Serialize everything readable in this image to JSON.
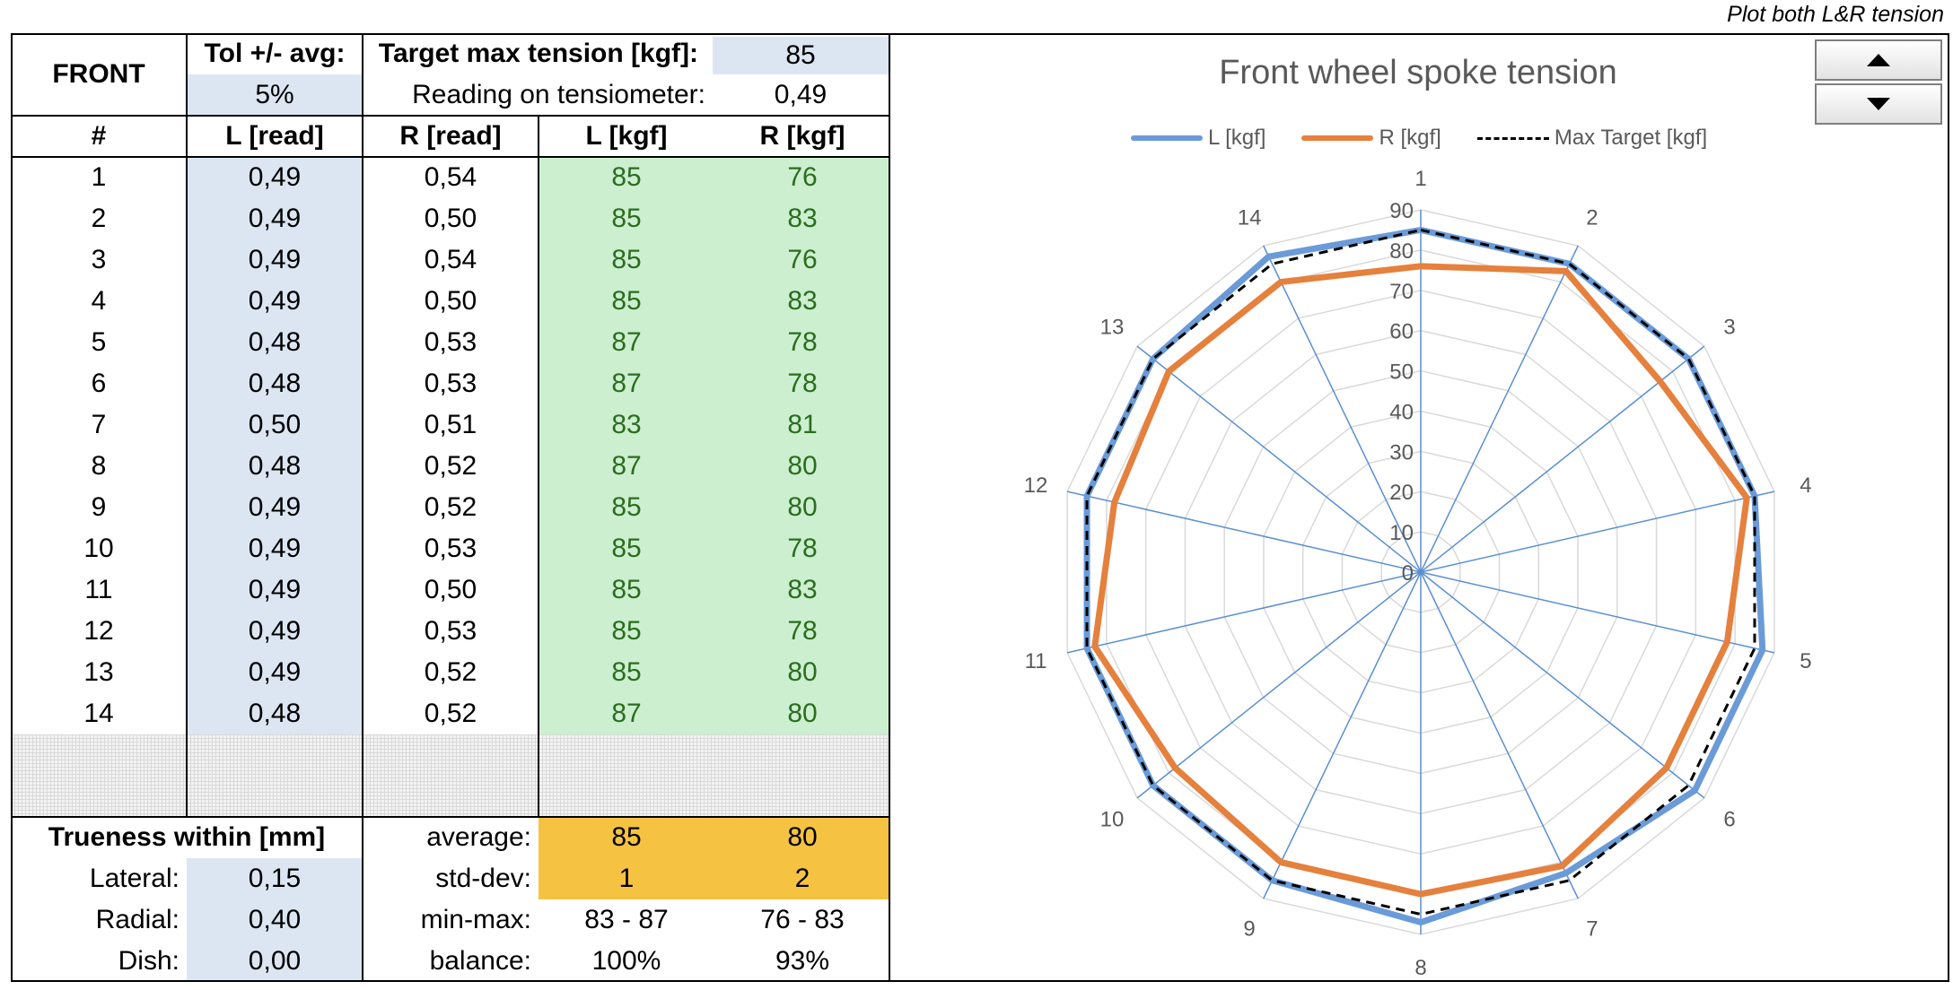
{
  "note": "Plot both L&R tension",
  "header": {
    "front_label": "FRONT",
    "tol_label": "Tol +/- avg:",
    "tol_value": "5%",
    "target_label": "Target max tension [kgf]:",
    "target_value": "85",
    "reading_label": "Reading on tensiometer:",
    "reading_value": "0,49"
  },
  "columns": [
    "#",
    "L [read]",
    "R [read]",
    "L [kgf]",
    "R [kgf]"
  ],
  "rows": [
    {
      "n": "1",
      "lr": "0,49",
      "rr": "0,54",
      "lk": "85",
      "rk": "76"
    },
    {
      "n": "2",
      "lr": "0,49",
      "rr": "0,50",
      "lk": "85",
      "rk": "83"
    },
    {
      "n": "3",
      "lr": "0,49",
      "rr": "0,54",
      "lk": "85",
      "rk": "76"
    },
    {
      "n": "4",
      "lr": "0,49",
      "rr": "0,50",
      "lk": "85",
      "rk": "83"
    },
    {
      "n": "5",
      "lr": "0,48",
      "rr": "0,53",
      "lk": "87",
      "rk": "78"
    },
    {
      "n": "6",
      "lr": "0,48",
      "rr": "0,53",
      "lk": "87",
      "rk": "78"
    },
    {
      "n": "7",
      "lr": "0,50",
      "rr": "0,51",
      "lk": "83",
      "rk": "81"
    },
    {
      "n": "8",
      "lr": "0,48",
      "rr": "0,52",
      "lk": "87",
      "rk": "80"
    },
    {
      "n": "9",
      "lr": "0,49",
      "rr": "0,52",
      "lk": "85",
      "rk": "80"
    },
    {
      "n": "10",
      "lr": "0,49",
      "rr": "0,53",
      "lk": "85",
      "rk": "78"
    },
    {
      "n": "11",
      "lr": "0,49",
      "rr": "0,50",
      "lk": "85",
      "rk": "83"
    },
    {
      "n": "12",
      "lr": "0,49",
      "rr": "0,53",
      "lk": "85",
      "rk": "78"
    },
    {
      "n": "13",
      "lr": "0,49",
      "rr": "0,52",
      "lk": "85",
      "rk": "80"
    },
    {
      "n": "14",
      "lr": "0,48",
      "rr": "0,52",
      "lk": "87",
      "rk": "80"
    }
  ],
  "summary": {
    "trueness_label": "Trueness within [mm]",
    "lateral_label": "Lateral:",
    "lateral_value": "0,15",
    "radial_label": "Radial:",
    "radial_value": "0,40",
    "dish_label": "Dish:",
    "dish_value": "0,00",
    "average_label": "average:",
    "average_l": "85",
    "average_r": "80",
    "stddev_label": "std-dev:",
    "stddev_l": "1",
    "stddev_r": "2",
    "minmax_label": "min-max:",
    "minmax_l": "83 - 87",
    "minmax_r": "76 - 83",
    "balance_label": "balance:",
    "balance_l": "100%",
    "balance_r": "93%"
  },
  "spinner": {
    "up_icon": "arrow-up-icon",
    "down_icon": "arrow-down-icon"
  },
  "chart_data": {
    "type": "radar",
    "title": "Front wheel spoke tension",
    "categories": [
      "1",
      "2",
      "3",
      "4",
      "5",
      "6",
      "7",
      "8",
      "9",
      "10",
      "11",
      "12",
      "13",
      "14"
    ],
    "rlim": [
      0,
      90
    ],
    "ticks": [
      "0",
      "10",
      "20",
      "30",
      "40",
      "50",
      "60",
      "70",
      "80",
      "90"
    ],
    "series": [
      {
        "name": "L [kgf]",
        "color": "#6a9bd8",
        "dash": false,
        "values": [
          85,
          85,
          85,
          85,
          87,
          87,
          83,
          87,
          85,
          85,
          85,
          85,
          85,
          87
        ]
      },
      {
        "name": "R [kgf]",
        "color": "#e5803d",
        "dash": false,
        "values": [
          76,
          83,
          76,
          83,
          78,
          78,
          81,
          80,
          80,
          78,
          83,
          78,
          80,
          80
        ]
      },
      {
        "name": "Max Target [kgf]",
        "color": "#000000",
        "dash": true,
        "values": [
          85,
          85,
          85,
          85,
          85,
          85,
          85,
          85,
          85,
          85,
          85,
          85,
          85,
          85
        ]
      }
    ]
  }
}
